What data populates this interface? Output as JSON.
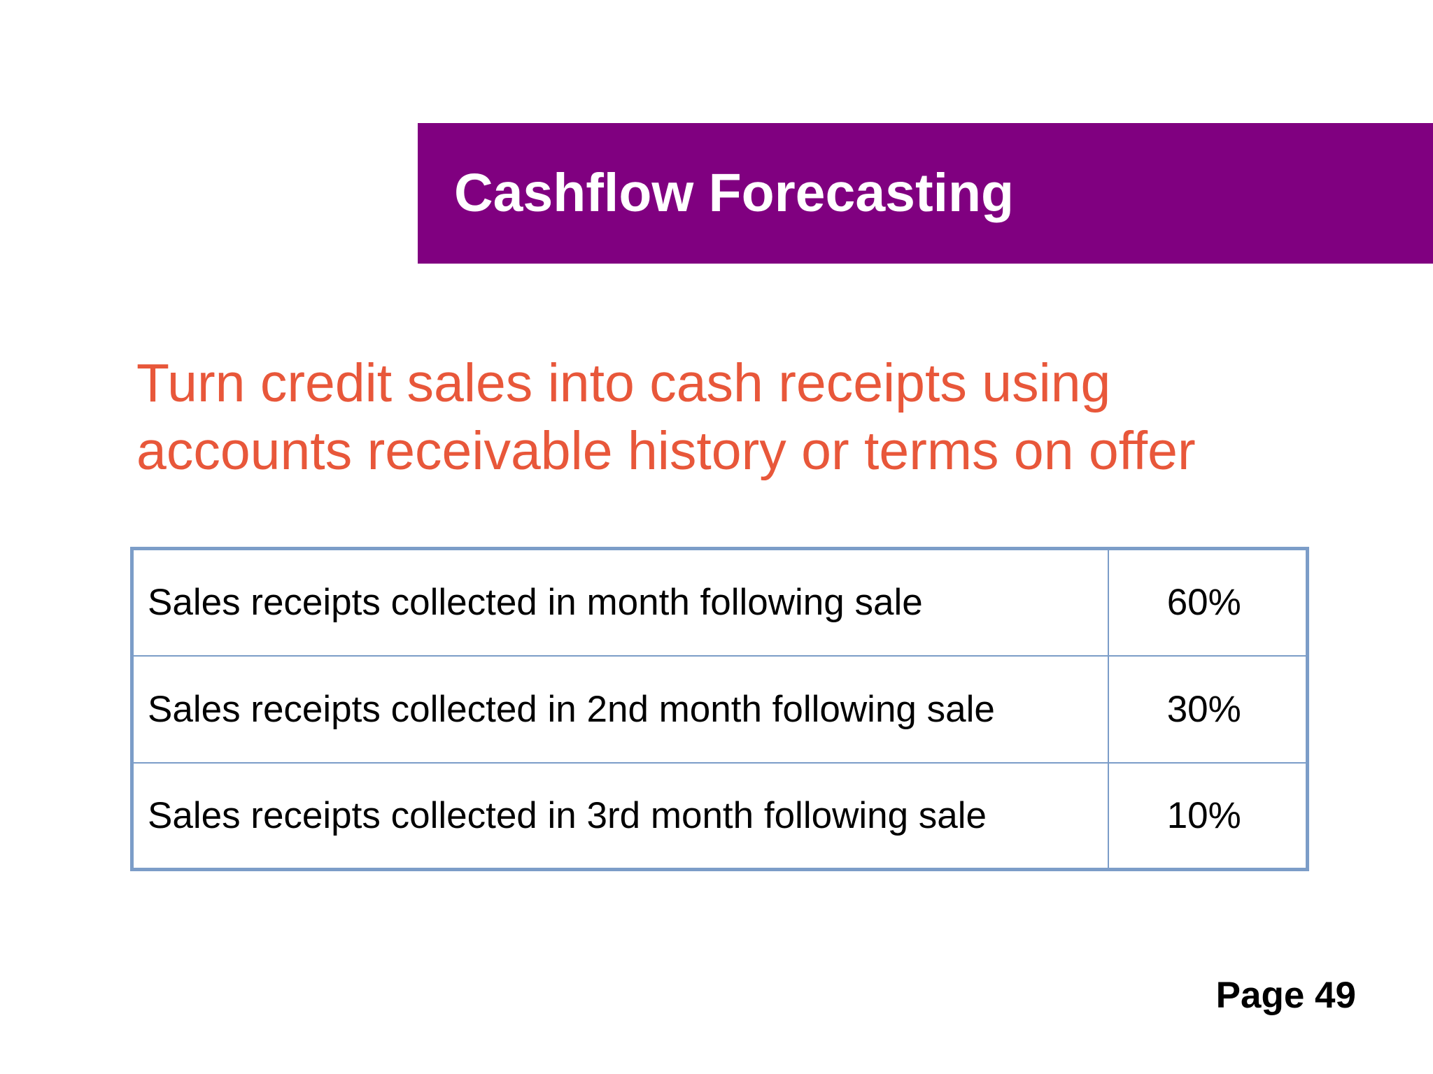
{
  "slide": {
    "title": "Cashflow Forecasting",
    "subtitle_lines": [
      "Turn credit sales into cash receipts using",
      "accounts receivable history or terms on offer"
    ],
    "page_label": "Page 49"
  },
  "table": {
    "rows": [
      {
        "description": "Sales receipts collected in month following sale",
        "percent": "60%"
      },
      {
        "description": "Sales receipts collected in 2nd month following sale",
        "percent": "30%"
      },
      {
        "description": "Sales receipts collected in 3rd month following sale",
        "percent": "10%"
      }
    ]
  },
  "colors": {
    "title_bar": "#800080",
    "subtitle_text": "#e8573a",
    "table_border": "#7c9dc8"
  }
}
